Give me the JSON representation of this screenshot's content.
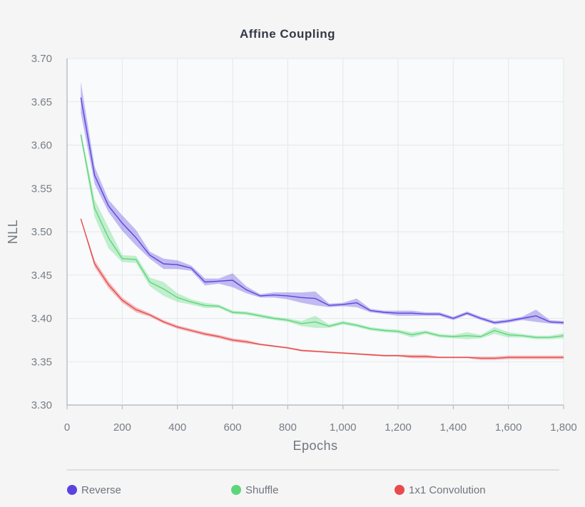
{
  "chart_data": {
    "type": "line",
    "title": "Affine Coupling",
    "xlabel": "Epochs",
    "ylabel": "NLL",
    "xlim": [
      0,
      1800
    ],
    "ylim": [
      3.3,
      3.7
    ],
    "x_ticks": [
      0,
      200,
      400,
      600,
      800,
      1000,
      1200,
      1400,
      1600,
      1800
    ],
    "x_tick_labels": [
      "0",
      "200",
      "400",
      "600",
      "800",
      "1,000",
      "1,200",
      "1,400",
      "1,600",
      "1,800"
    ],
    "y_ticks": [
      3.3,
      3.35,
      3.4,
      3.45,
      3.5,
      3.55,
      3.6,
      3.65,
      3.7
    ],
    "y_tick_labels": [
      "3.30",
      "3.35",
      "3.40",
      "3.45",
      "3.50",
      "3.55",
      "3.60",
      "3.65",
      "3.70"
    ],
    "grid": true,
    "legend_position": "bottom",
    "x": [
      50,
      100,
      150,
      200,
      250,
      300,
      350,
      400,
      450,
      500,
      550,
      600,
      650,
      700,
      750,
      800,
      850,
      900,
      950,
      1000,
      1050,
      1100,
      1150,
      1200,
      1250,
      1300,
      1350,
      1400,
      1450,
      1500,
      1550,
      1600,
      1650,
      1700,
      1750,
      1800
    ],
    "series": [
      {
        "name": "Reverse",
        "color": "#5b43e0",
        "values": [
          3.655,
          3.565,
          3.53,
          3.51,
          3.493,
          3.473,
          3.463,
          3.462,
          3.458,
          3.442,
          3.443,
          3.444,
          3.433,
          3.426,
          3.427,
          3.426,
          3.424,
          3.423,
          3.415,
          3.416,
          3.418,
          3.409,
          3.407,
          3.406,
          3.406,
          3.405,
          3.405,
          3.4,
          3.406,
          3.4,
          3.395,
          3.397,
          3.4,
          3.403,
          3.396,
          3.395
        ],
        "band": [
          0.018,
          0.01,
          0.007,
          0.009,
          0.009,
          0.004,
          0.006,
          0.005,
          0.003,
          0.004,
          0.003,
          0.008,
          0.004,
          0.002,
          0.003,
          0.004,
          0.006,
          0.008,
          0.002,
          0.002,
          0.005,
          0.002,
          0.002,
          0.003,
          0.003,
          0.002,
          0.002,
          0.002,
          0.002,
          0.002,
          0.002,
          0.002,
          0.002,
          0.007,
          0.002,
          0.002
        ]
      },
      {
        "name": "Shuffle",
        "color": "#5dd67a",
        "values": [
          3.612,
          3.527,
          3.493,
          3.469,
          3.468,
          3.442,
          3.434,
          3.424,
          3.419,
          3.415,
          3.414,
          3.407,
          3.406,
          3.403,
          3.4,
          3.398,
          3.394,
          3.396,
          3.391,
          3.395,
          3.392,
          3.388,
          3.386,
          3.385,
          3.381,
          3.384,
          3.38,
          3.379,
          3.38,
          3.379,
          3.386,
          3.381,
          3.38,
          3.378,
          3.378,
          3.38
        ],
        "band": [
          0.004,
          0.01,
          0.012,
          0.004,
          0.004,
          0.005,
          0.008,
          0.005,
          0.003,
          0.003,
          0.002,
          0.002,
          0.002,
          0.002,
          0.002,
          0.002,
          0.003,
          0.007,
          0.002,
          0.002,
          0.002,
          0.002,
          0.002,
          0.002,
          0.003,
          0.002,
          0.002,
          0.002,
          0.004,
          0.002,
          0.004,
          0.003,
          0.002,
          0.002,
          0.002,
          0.003
        ]
      },
      {
        "name": "1x1 Convolution",
        "color": "#e94a4d",
        "values": [
          3.515,
          3.463,
          3.439,
          3.421,
          3.41,
          3.404,
          3.396,
          3.39,
          3.386,
          3.382,
          3.379,
          3.375,
          3.373,
          3.37,
          3.368,
          3.366,
          3.363,
          3.362,
          3.361,
          3.36,
          3.359,
          3.358,
          3.357,
          3.357,
          3.356,
          3.356,
          3.355,
          3.355,
          3.355,
          3.354,
          3.354,
          3.355,
          3.355,
          3.355,
          3.355,
          3.355
        ],
        "band": [
          0.001,
          0.004,
          0.004,
          0.003,
          0.003,
          0.002,
          0.002,
          0.002,
          0.002,
          0.002,
          0.002,
          0.002,
          0.002,
          0.001,
          0.001,
          0.001,
          0.001,
          0.001,
          0.001,
          0.001,
          0.001,
          0.001,
          0.001,
          0.001,
          0.002,
          0.002,
          0.001,
          0.001,
          0.001,
          0.002,
          0.002,
          0.002,
          0.002,
          0.002,
          0.002,
          0.002
        ]
      }
    ]
  }
}
